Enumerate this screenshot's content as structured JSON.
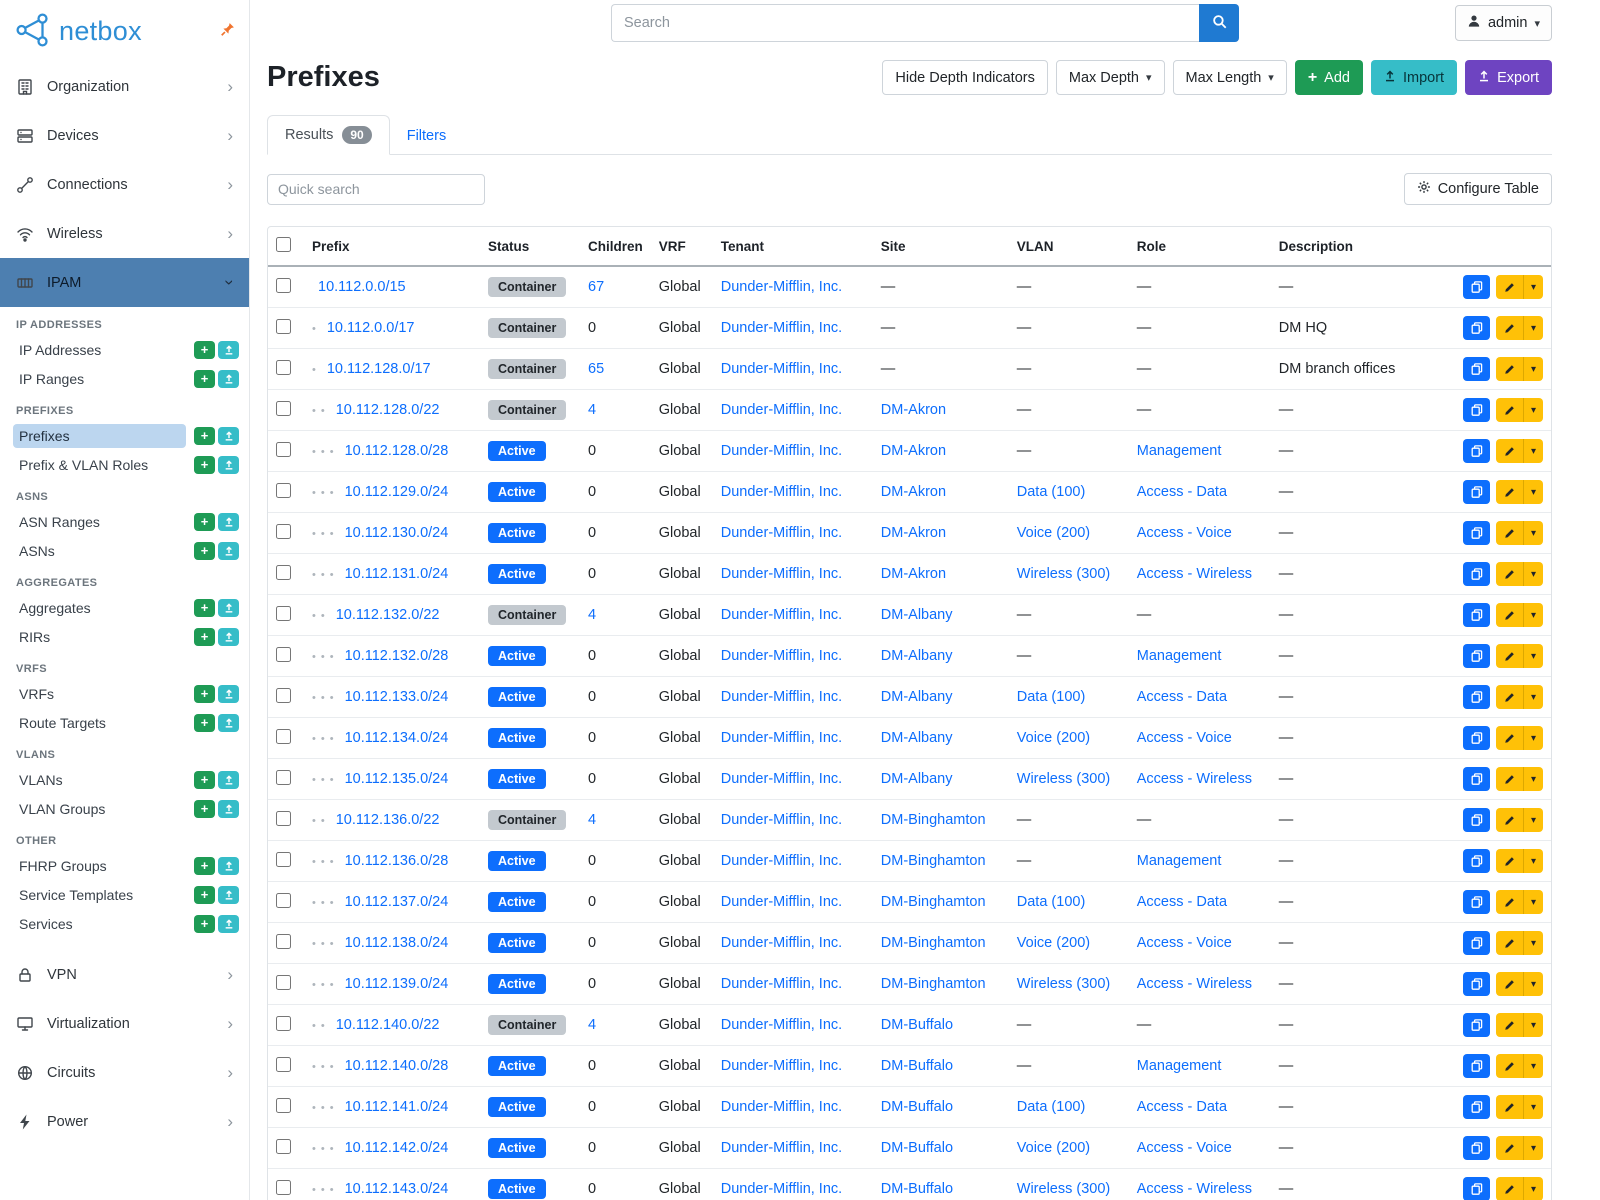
{
  "brand": {
    "logo_text": "netbox"
  },
  "topbar": {
    "search_placeholder": "Search",
    "user": "admin"
  },
  "colors": {
    "brand_blue": "#2e8ed5",
    "primary_blue": "#0d6efd",
    "add_green": "#1e9b55",
    "import_teal": "#36bdc8",
    "export_purple": "#6e44c1",
    "edit_yellow": "#ffc107",
    "pin_orange": "#f0742f",
    "active_group_bg": "#4d7fb0",
    "container_badge_bg": "#c3c9cf",
    "active_badge_bg": "#0d6efd"
  },
  "sidebar": {
    "groups_before": [
      {
        "label": "Organization",
        "icon": "building-icon"
      },
      {
        "label": "Devices",
        "icon": "devices-icon"
      },
      {
        "label": "Connections",
        "icon": "connections-icon"
      },
      {
        "label": "Wireless",
        "icon": "wireless-icon"
      }
    ],
    "active_group": {
      "label": "IPAM",
      "icon": "ipam-icon"
    },
    "submenu_sections": [
      {
        "heading": "IP ADDRESSES",
        "items": [
          {
            "label": "IP Addresses"
          },
          {
            "label": "IP Ranges"
          }
        ]
      },
      {
        "heading": "PREFIXES",
        "items": [
          {
            "label": "Prefixes",
            "active": true
          },
          {
            "label": "Prefix & VLAN Roles"
          }
        ]
      },
      {
        "heading": "ASNS",
        "items": [
          {
            "label": "ASN Ranges"
          },
          {
            "label": "ASNs"
          }
        ]
      },
      {
        "heading": "AGGREGATES",
        "items": [
          {
            "label": "Aggregates"
          },
          {
            "label": "RIRs"
          }
        ]
      },
      {
        "heading": "VRFS",
        "items": [
          {
            "label": "VRFs"
          },
          {
            "label": "Route Targets"
          }
        ]
      },
      {
        "heading": "VLANS",
        "items": [
          {
            "label": "VLANs"
          },
          {
            "label": "VLAN Groups"
          }
        ]
      },
      {
        "heading": "OTHER",
        "items": [
          {
            "label": "FHRP Groups"
          },
          {
            "label": "Service Templates"
          },
          {
            "label": "Services"
          }
        ]
      }
    ],
    "groups_after": [
      {
        "label": "VPN",
        "icon": "vpn-icon"
      },
      {
        "label": "Virtualization",
        "icon": "virtualization-icon"
      },
      {
        "label": "Circuits",
        "icon": "circuits-icon"
      },
      {
        "label": "Power",
        "icon": "power-icon"
      }
    ]
  },
  "page": {
    "title": "Prefixes",
    "toolbar": {
      "hide_depth": "Hide Depth Indicators",
      "max_depth": "Max Depth",
      "max_length": "Max Length",
      "add": "Add",
      "import": "Import",
      "export": "Export"
    },
    "tabs": {
      "results": "Results",
      "results_count": "90",
      "filters": "Filters"
    },
    "quick_search_placeholder": "Quick search",
    "configure_table": "Configure Table"
  },
  "table": {
    "columns": [
      "Prefix",
      "Status",
      "Children",
      "VRF",
      "Tenant",
      "Site",
      "VLAN",
      "Role",
      "Description"
    ],
    "rows": [
      {
        "depth": 0,
        "prefix": "10.112.0.0/15",
        "status": "Container",
        "children": "67",
        "vrf": "Global",
        "tenant": "Dunder-Mifflin, Inc.",
        "site": "—",
        "vlan": "—",
        "role": "—",
        "description": "—"
      },
      {
        "depth": 1,
        "prefix": "10.112.0.0/17",
        "status": "Container",
        "children": "0",
        "vrf": "Global",
        "tenant": "Dunder-Mifflin, Inc.",
        "site": "—",
        "vlan": "—",
        "role": "—",
        "description": "DM HQ"
      },
      {
        "depth": 1,
        "prefix": "10.112.128.0/17",
        "status": "Container",
        "children": "65",
        "vrf": "Global",
        "tenant": "Dunder-Mifflin, Inc.",
        "site": "—",
        "vlan": "—",
        "role": "—",
        "description": "DM branch offices"
      },
      {
        "depth": 2,
        "prefix": "10.112.128.0/22",
        "status": "Container",
        "children": "4",
        "vrf": "Global",
        "tenant": "Dunder-Mifflin, Inc.",
        "site": "DM-Akron",
        "vlan": "—",
        "role": "—",
        "description": "—"
      },
      {
        "depth": 3,
        "prefix": "10.112.128.0/28",
        "status": "Active",
        "children": "0",
        "vrf": "Global",
        "tenant": "Dunder-Mifflin, Inc.",
        "site": "DM-Akron",
        "vlan": "—",
        "role": "Management",
        "description": "—"
      },
      {
        "depth": 3,
        "prefix": "10.112.129.0/24",
        "status": "Active",
        "children": "0",
        "vrf": "Global",
        "tenant": "Dunder-Mifflin, Inc.",
        "site": "DM-Akron",
        "vlan": "Data (100)",
        "role": "Access - Data",
        "description": "—"
      },
      {
        "depth": 3,
        "prefix": "10.112.130.0/24",
        "status": "Active",
        "children": "0",
        "vrf": "Global",
        "tenant": "Dunder-Mifflin, Inc.",
        "site": "DM-Akron",
        "vlan": "Voice (200)",
        "role": "Access - Voice",
        "description": "—"
      },
      {
        "depth": 3,
        "prefix": "10.112.131.0/24",
        "status": "Active",
        "children": "0",
        "vrf": "Global",
        "tenant": "Dunder-Mifflin, Inc.",
        "site": "DM-Akron",
        "vlan": "Wireless (300)",
        "role": "Access - Wireless",
        "description": "—"
      },
      {
        "depth": 2,
        "prefix": "10.112.132.0/22",
        "status": "Container",
        "children": "4",
        "vrf": "Global",
        "tenant": "Dunder-Mifflin, Inc.",
        "site": "DM-Albany",
        "vlan": "—",
        "role": "—",
        "description": "—"
      },
      {
        "depth": 3,
        "prefix": "10.112.132.0/28",
        "status": "Active",
        "children": "0",
        "vrf": "Global",
        "tenant": "Dunder-Mifflin, Inc.",
        "site": "DM-Albany",
        "vlan": "—",
        "role": "Management",
        "description": "—"
      },
      {
        "depth": 3,
        "prefix": "10.112.133.0/24",
        "status": "Active",
        "children": "0",
        "vrf": "Global",
        "tenant": "Dunder-Mifflin, Inc.",
        "site": "DM-Albany",
        "vlan": "Data (100)",
        "role": "Access - Data",
        "description": "—"
      },
      {
        "depth": 3,
        "prefix": "10.112.134.0/24",
        "status": "Active",
        "children": "0",
        "vrf": "Global",
        "tenant": "Dunder-Mifflin, Inc.",
        "site": "DM-Albany",
        "vlan": "Voice (200)",
        "role": "Access - Voice",
        "description": "—"
      },
      {
        "depth": 3,
        "prefix": "10.112.135.0/24",
        "status": "Active",
        "children": "0",
        "vrf": "Global",
        "tenant": "Dunder-Mifflin, Inc.",
        "site": "DM-Albany",
        "vlan": "Wireless (300)",
        "role": "Access - Wireless",
        "description": "—"
      },
      {
        "depth": 2,
        "prefix": "10.112.136.0/22",
        "status": "Container",
        "children": "4",
        "vrf": "Global",
        "tenant": "Dunder-Mifflin, Inc.",
        "site": "DM-Binghamton",
        "vlan": "—",
        "role": "—",
        "description": "—"
      },
      {
        "depth": 3,
        "prefix": "10.112.136.0/28",
        "status": "Active",
        "children": "0",
        "vrf": "Global",
        "tenant": "Dunder-Mifflin, Inc.",
        "site": "DM-Binghamton",
        "vlan": "—",
        "role": "Management",
        "description": "—"
      },
      {
        "depth": 3,
        "prefix": "10.112.137.0/24",
        "status": "Active",
        "children": "0",
        "vrf": "Global",
        "tenant": "Dunder-Mifflin, Inc.",
        "site": "DM-Binghamton",
        "vlan": "Data (100)",
        "role": "Access - Data",
        "description": "—"
      },
      {
        "depth": 3,
        "prefix": "10.112.138.0/24",
        "status": "Active",
        "children": "0",
        "vrf": "Global",
        "tenant": "Dunder-Mifflin, Inc.",
        "site": "DM-Binghamton",
        "vlan": "Voice (200)",
        "role": "Access - Voice",
        "description": "—"
      },
      {
        "depth": 3,
        "prefix": "10.112.139.0/24",
        "status": "Active",
        "children": "0",
        "vrf": "Global",
        "tenant": "Dunder-Mifflin, Inc.",
        "site": "DM-Binghamton",
        "vlan": "Wireless (300)",
        "role": "Access - Wireless",
        "description": "—"
      },
      {
        "depth": 2,
        "prefix": "10.112.140.0/22",
        "status": "Container",
        "children": "4",
        "vrf": "Global",
        "tenant": "Dunder-Mifflin, Inc.",
        "site": "DM-Buffalo",
        "vlan": "—",
        "role": "—",
        "description": "—"
      },
      {
        "depth": 3,
        "prefix": "10.112.140.0/28",
        "status": "Active",
        "children": "0",
        "vrf": "Global",
        "tenant": "Dunder-Mifflin, Inc.",
        "site": "DM-Buffalo",
        "vlan": "—",
        "role": "Management",
        "description": "—"
      },
      {
        "depth": 3,
        "prefix": "10.112.141.0/24",
        "status": "Active",
        "children": "0",
        "vrf": "Global",
        "tenant": "Dunder-Mifflin, Inc.",
        "site": "DM-Buffalo",
        "vlan": "Data (100)",
        "role": "Access - Data",
        "description": "—"
      },
      {
        "depth": 3,
        "prefix": "10.112.142.0/24",
        "status": "Active",
        "children": "0",
        "vrf": "Global",
        "tenant": "Dunder-Mifflin, Inc.",
        "site": "DM-Buffalo",
        "vlan": "Voice (200)",
        "role": "Access - Voice",
        "description": "—"
      },
      {
        "depth": 3,
        "prefix": "10.112.143.0/24",
        "status": "Active",
        "children": "0",
        "vrf": "Global",
        "tenant": "Dunder-Mifflin, Inc.",
        "site": "DM-Buffalo",
        "vlan": "Wireless (300)",
        "role": "Access - Wireless",
        "description": "—"
      }
    ]
  }
}
